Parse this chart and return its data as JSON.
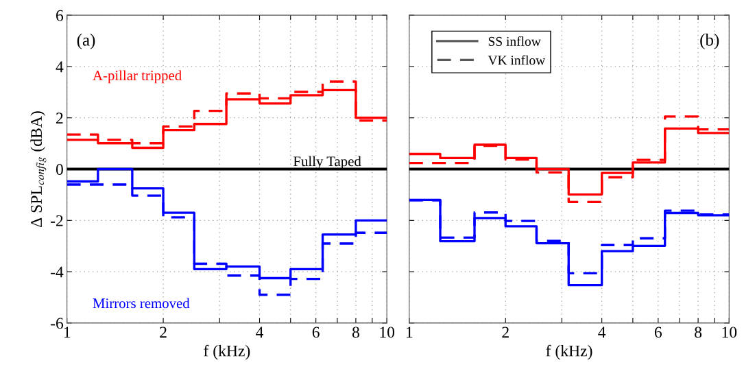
{
  "chart_data": [
    {
      "type": "step",
      "ylabel": "Δ SPL$_{config}$ (dBA)",
      "xlabel": "f (kHz)",
      "log": "x",
      "x": [
        1,
        1.25,
        1.6,
        2,
        2.5,
        3.15,
        4,
        5,
        6.3,
        8,
        10
      ],
      "xlim": [
        1,
        10
      ],
      "xticks": [
        1,
        2,
        {
          "value": 3,
          "label": null
        },
        4,
        {
          "value": 5,
          "label": null
        },
        6,
        {
          "value": 7,
          "label": null
        },
        8,
        {
          "value": 9,
          "label": null
        },
        10
      ],
      "ylim": [
        -6,
        6
      ],
      "yticks": [
        -6,
        -4,
        -2,
        0,
        2,
        4,
        6
      ],
      "grid": true,
      "annotations": [
        "(a)"
      ],
      "ref_lines": [
        {
          "axis": "y",
          "value": 0,
          "label": "Fully Taped",
          "color": "#000000"
        }
      ],
      "series": [
        {
          "name": "A-pillar tripped",
          "color": "#ff0000",
          "line_style": "solid",
          "values": [
            1.14,
            1.01,
            0.83,
            1.52,
            1.76,
            2.72,
            2.56,
            2.88,
            3.08,
            2.0,
            2.0
          ]
        },
        {
          "color": "#ff0000",
          "line_style": "dashed",
          "values": [
            1.35,
            1.14,
            1.01,
            1.66,
            2.27,
            2.95,
            2.76,
            3.01,
            3.41,
            1.89,
            1.89
          ]
        },
        {
          "name": "Mirrors removed",
          "color": "#0000ff",
          "line_style": "solid",
          "values": [
            -0.48,
            0.0,
            -0.75,
            -1.7,
            -3.9,
            -3.8,
            -4.25,
            -3.9,
            -2.55,
            -2.0,
            -2.0
          ]
        },
        {
          "color": "#0000ff",
          "line_style": "dashed",
          "values": [
            -0.6,
            -0.6,
            -1.03,
            -1.88,
            -3.69,
            -4.15,
            -4.9,
            -4.28,
            -2.9,
            -2.48,
            -2.48
          ]
        }
      ]
    },
    {
      "type": "step",
      "xlabel": "f (kHz)",
      "log": "x",
      "tick_labels": "x",
      "legend": "top left",
      "x": [
        1,
        1.25,
        1.6,
        2,
        2.5,
        3.15,
        4,
        5,
        6.3,
        8,
        10
      ],
      "xlim": [
        1,
        10
      ],
      "xticks": [
        1,
        2,
        {
          "value": 3,
          "label": null
        },
        4,
        {
          "value": 5,
          "label": null
        },
        6,
        {
          "value": 7,
          "label": null
        },
        8,
        {
          "value": 9,
          "label": null
        },
        10
      ],
      "ylim": [
        -6,
        6
      ],
      "yticks": [
        -6,
        -4,
        -2,
        0,
        2,
        4,
        6
      ],
      "grid": true,
      "annotations": [
        "(b)"
      ],
      "ref_lines": [
        {
          "axis": "y",
          "value": 0,
          "label": null,
          "color": "#000000"
        }
      ],
      "series": [
        {
          "color": "#ff0000",
          "line_style": "solid",
          "values": [
            0.59,
            0.43,
            0.95,
            0.43,
            0.0,
            -0.99,
            -0.15,
            0.26,
            1.58,
            1.41,
            1.41
          ]
        },
        {
          "color": "#ff0000",
          "line_style": "dashed",
          "values": [
            0.24,
            0.24,
            0.91,
            0.37,
            -0.13,
            -1.28,
            -0.32,
            0.36,
            2.05,
            1.55,
            1.55
          ]
        },
        {
          "color": "#0000ff",
          "line_style": "solid",
          "values": [
            -1.2,
            -2.81,
            -1.91,
            -2.23,
            -2.89,
            -4.52,
            -3.2,
            -2.99,
            -1.71,
            -1.8,
            -1.8
          ]
        },
        {
          "color": "#0000ff",
          "line_style": "dashed",
          "values": [
            -1.22,
            -2.67,
            -1.69,
            -2.02,
            -2.8,
            -4.06,
            -2.96,
            -2.7,
            -1.62,
            -1.77,
            -1.77
          ]
        },
        {
          "name": "SS inflow",
          "color": "#595959",
          "line_style": "solid",
          "values": [
            null,
            null,
            null,
            null,
            null,
            null,
            null,
            null,
            null,
            null,
            null
          ]
        },
        {
          "name": "VK inflow",
          "color": "#595959",
          "line_style": "dashed",
          "values": [
            null,
            null,
            null,
            null,
            null,
            null,
            null,
            null,
            null,
            null,
            null
          ]
        }
      ]
    }
  ]
}
